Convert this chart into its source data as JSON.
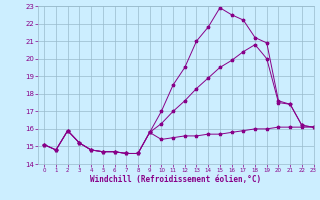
{
  "xlabel": "Windchill (Refroidissement éolien,°C)",
  "xlim": [
    -0.5,
    23
  ],
  "ylim": [
    14,
    23
  ],
  "bg_color": "#cceeff",
  "line_color": "#880088",
  "grid_color": "#99bbcc",
  "xticks": [
    0,
    1,
    2,
    3,
    4,
    5,
    6,
    7,
    8,
    9,
    10,
    11,
    12,
    13,
    14,
    15,
    16,
    17,
    18,
    19,
    20,
    21,
    22,
    23
  ],
  "yticks": [
    14,
    15,
    16,
    17,
    18,
    19,
    20,
    21,
    22,
    23
  ],
  "line1_x": [
    0,
    1,
    2,
    3,
    4,
    5,
    6,
    7,
    8,
    9,
    10,
    11,
    12,
    13,
    14,
    15,
    16,
    17,
    18,
    19,
    20,
    21,
    22,
    23
  ],
  "line1_y": [
    15.1,
    14.8,
    15.9,
    15.2,
    14.8,
    14.7,
    14.7,
    14.6,
    14.6,
    15.8,
    15.4,
    15.5,
    15.6,
    15.6,
    15.7,
    15.7,
    15.8,
    15.9,
    16.0,
    16.0,
    16.1,
    16.1,
    16.1,
    16.1
  ],
  "line2_x": [
    0,
    1,
    2,
    3,
    4,
    5,
    6,
    7,
    8,
    9,
    10,
    11,
    12,
    13,
    14,
    15,
    16,
    17,
    18,
    19,
    20,
    21,
    22,
    23
  ],
  "line2_y": [
    15.1,
    14.8,
    15.9,
    15.2,
    14.8,
    14.7,
    14.7,
    14.6,
    14.6,
    15.8,
    16.3,
    17.0,
    17.6,
    18.3,
    18.9,
    19.5,
    19.9,
    20.4,
    20.8,
    20.0,
    17.5,
    17.4,
    16.2,
    16.1
  ],
  "line3_x": [
    0,
    1,
    2,
    3,
    4,
    5,
    6,
    7,
    8,
    9,
    10,
    11,
    12,
    13,
    14,
    15,
    16,
    17,
    18,
    19,
    20,
    21,
    22,
    23
  ],
  "line3_y": [
    15.1,
    14.8,
    15.9,
    15.2,
    14.8,
    14.7,
    14.7,
    14.6,
    14.6,
    15.8,
    17.0,
    18.5,
    19.5,
    21.0,
    21.8,
    22.9,
    22.5,
    22.2,
    21.2,
    20.9,
    17.6,
    17.4,
    16.2,
    16.1
  ]
}
